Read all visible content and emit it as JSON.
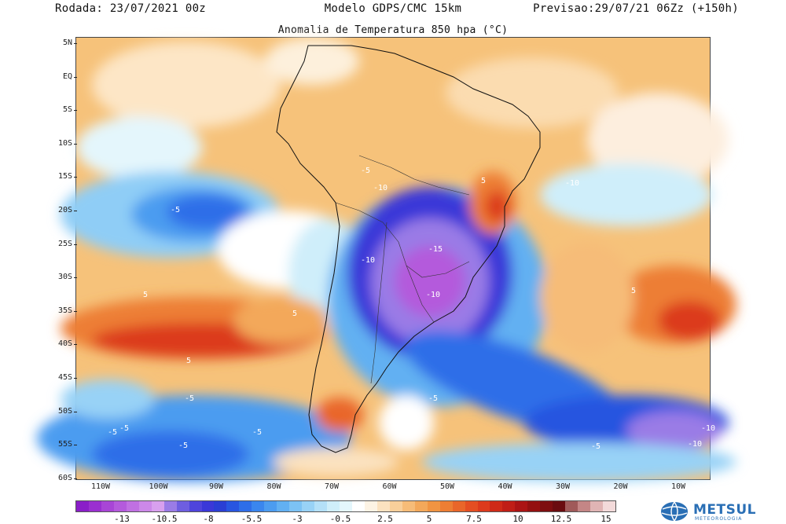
{
  "header": {
    "run": "Rodada: 23/07/2021 00z",
    "model": "Modelo GDPS/CMC 15km",
    "forecast": "Previsao:29/07/21 06Zz (+150h)",
    "title": "Anomalia de Temperatura 850 hpa (°C)"
  },
  "axes": {
    "lat_labels": [
      "5N",
      "EQ",
      "5S",
      "10S",
      "15S",
      "20S",
      "25S",
      "30S",
      "35S",
      "40S",
      "45S",
      "50S",
      "55S",
      "60S"
    ],
    "lon_labels": [
      "110W",
      "100W",
      "90W",
      "80W",
      "70W",
      "60W",
      "50W",
      "40W",
      "30W",
      "20W",
      "10W"
    ]
  },
  "colorbar": {
    "labels": [
      "-13",
      "-10.5",
      "-8",
      "-5.5",
      "-3",
      "-0.5",
      "2.5",
      "5",
      "7.5",
      "10",
      "12.5",
      "15"
    ],
    "colors": [
      "#8a1ec8",
      "#9a2fd0",
      "#a845d6",
      "#b45adc",
      "#c070e2",
      "#cc88e8",
      "#d8a0ee",
      "#9a7ce6",
      "#6e5ee0",
      "#4e44dc",
      "#3a38d8",
      "#2a3ed4",
      "#2855e0",
      "#2e6ee8",
      "#3a86ee",
      "#4c9cf0",
      "#62b0f2",
      "#7cc2f4",
      "#98d2f6",
      "#b4e0f8",
      "#cfeefa",
      "#e4f6fc",
      "#ffffff",
      "#fdf3e4",
      "#fbe2c0",
      "#f8cf9a",
      "#f6bc78",
      "#f3a85a",
      "#f09442",
      "#ed7e34",
      "#e9662a",
      "#e44e22",
      "#dc3a1c",
      "#cf2a18",
      "#c01e16",
      "#ab1414",
      "#941010",
      "#7e0e10",
      "#6a0c10",
      "#a05a5a",
      "#c48686",
      "#e0b4b4",
      "#f3dada"
    ]
  },
  "contour_labels": [
    "-5",
    "-10",
    "-15",
    "-10",
    "-10",
    "-10",
    "-5",
    "-5",
    "-5",
    "-5",
    "-5",
    "-5",
    "-5",
    "-5",
    "-10",
    "-10",
    "5",
    "5",
    "5",
    "5",
    "5"
  ],
  "logo": {
    "name": "METSUL",
    "tagline": "METEOROLOGIA"
  }
}
